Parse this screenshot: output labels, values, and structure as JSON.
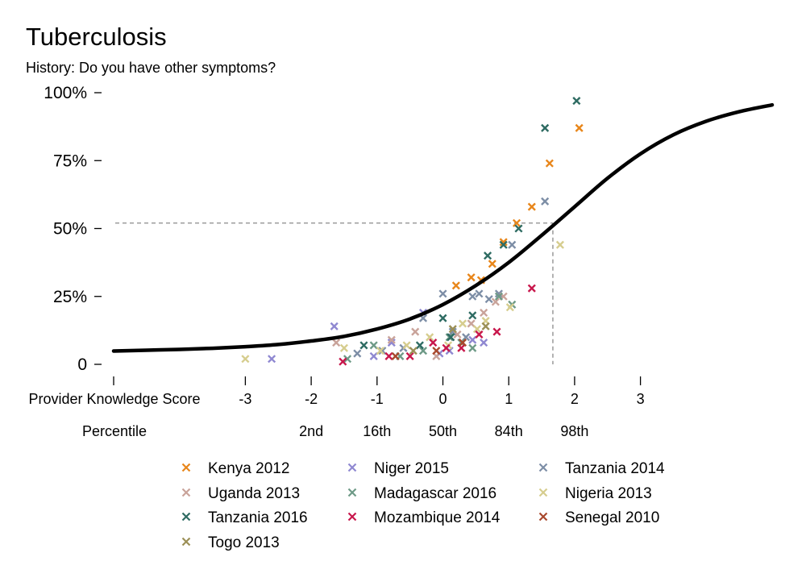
{
  "chart_data": {
    "type": "scatter",
    "title": "Tuberculosis",
    "subtitle": "History: Do you have other symptoms?",
    "y_ticks": [
      "0",
      "25%",
      "50%",
      "75%",
      "100%"
    ],
    "y_range": [
      0,
      100
    ],
    "x_range": [
      -5,
      5
    ],
    "x_row_label": "Provider Knowledge Score",
    "x_ticks": [
      "-3",
      "-2",
      "-1",
      "0",
      "1",
      "2",
      "3"
    ],
    "x_tick_values": [
      -3,
      -2,
      -1,
      0,
      1,
      2,
      3
    ],
    "percentile_row_label": "Percentile",
    "percentile_ticks": [
      "2nd",
      "16th",
      "50th",
      "84th",
      "98th"
    ],
    "percentile_values": [
      -2,
      -1,
      0,
      1,
      2
    ],
    "reference": {
      "x": 1.67,
      "y": 52
    },
    "grid": false,
    "legend_position": "bottom",
    "fit_curve": [
      [
        -5,
        4.9
      ],
      [
        -4.5,
        5.2
      ],
      [
        -4,
        5.5
      ],
      [
        -3.5,
        5.9
      ],
      [
        -3,
        6.5
      ],
      [
        -2.5,
        7.3
      ],
      [
        -2,
        8.6
      ],
      [
        -1.5,
        10.3
      ],
      [
        -1,
        13
      ],
      [
        -0.5,
        16.7
      ],
      [
        0,
        22
      ],
      [
        0.5,
        29
      ],
      [
        1,
        37.5
      ],
      [
        1.5,
        47.5
      ],
      [
        2,
        58
      ],
      [
        2.5,
        68.5
      ],
      [
        3,
        77.5
      ],
      [
        3.5,
        84.5
      ],
      [
        4,
        89.5
      ],
      [
        4.5,
        93
      ],
      [
        5,
        95.5
      ]
    ],
    "series": [
      {
        "name": "Kenya 2012",
        "color": "#e8861a",
        "points": [
          [
            0.2,
            29
          ],
          [
            0.43,
            32
          ],
          [
            0.58,
            31
          ],
          [
            0.75,
            37
          ],
          [
            0.92,
            45
          ],
          [
            1.12,
            52
          ],
          [
            1.35,
            58
          ],
          [
            1.62,
            74
          ],
          [
            2.07,
            87
          ]
        ]
      },
      {
        "name": "Niger 2015",
        "color": "#8f88d1",
        "points": [
          [
            -2.6,
            2
          ],
          [
            -1.65,
            14
          ],
          [
            -1.05,
            3
          ],
          [
            -0.78,
            8
          ],
          [
            -0.3,
            19
          ],
          [
            -0.05,
            4
          ],
          [
            0.1,
            5
          ],
          [
            0.45,
            9
          ],
          [
            0.62,
            8
          ]
        ]
      },
      {
        "name": "Tanzania 2014",
        "color": "#7d8ea6",
        "points": [
          [
            -1.3,
            4
          ],
          [
            -0.92,
            5
          ],
          [
            -0.6,
            6
          ],
          [
            -0.3,
            17
          ],
          [
            0,
            26
          ],
          [
            0.15,
            12
          ],
          [
            0.35,
            10
          ],
          [
            0.45,
            25
          ],
          [
            0.55,
            26
          ],
          [
            0.7,
            24
          ],
          [
            0.85,
            26
          ],
          [
            1.05,
            44
          ],
          [
            1.55,
            60
          ]
        ]
      },
      {
        "name": "Uganda 2013",
        "color": "#c9a39a",
        "points": [
          [
            -1.62,
            8
          ],
          [
            -0.78,
            9
          ],
          [
            -0.42,
            12
          ],
          [
            -0.1,
            3
          ],
          [
            0.22,
            11
          ],
          [
            0.43,
            15
          ],
          [
            0.62,
            19
          ],
          [
            0.8,
            23
          ],
          [
            0.92,
            25
          ]
        ]
      },
      {
        "name": "Madagascar 2016",
        "color": "#6e9a87",
        "points": [
          [
            -1.45,
            2
          ],
          [
            -1.05,
            7
          ],
          [
            -0.65,
            3
          ],
          [
            -0.3,
            5
          ],
          [
            0.1,
            10
          ],
          [
            0.28,
            8
          ],
          [
            0.45,
            6
          ],
          [
            0.85,
            25
          ],
          [
            1.05,
            22
          ]
        ]
      },
      {
        "name": "Nigeria 2013",
        "color": "#d6cd8e",
        "points": [
          [
            -3,
            2
          ],
          [
            -1.5,
            6
          ],
          [
            -0.95,
            5
          ],
          [
            -0.55,
            7
          ],
          [
            -0.2,
            10
          ],
          [
            0.08,
            7
          ],
          [
            0.3,
            15
          ],
          [
            0.52,
            13
          ],
          [
            0.65,
            16
          ],
          [
            1.02,
            21
          ],
          [
            1.78,
            44
          ]
        ]
      },
      {
        "name": "Tanzania 2016",
        "color": "#2e6b62",
        "points": [
          [
            -1.2,
            7
          ],
          [
            -0.35,
            7
          ],
          [
            0,
            17
          ],
          [
            0.12,
            10
          ],
          [
            0.45,
            18
          ],
          [
            0.68,
            40
          ],
          [
            0.92,
            44
          ],
          [
            1.15,
            50
          ],
          [
            1.55,
            87
          ],
          [
            2.03,
            97
          ]
        ]
      },
      {
        "name": "Mozambique 2014",
        "color": "#c8174c",
        "points": [
          [
            -1.52,
            1
          ],
          [
            -0.82,
            3
          ],
          [
            -0.5,
            3
          ],
          [
            -0.15,
            8
          ],
          [
            0.05,
            6
          ],
          [
            0.28,
            6
          ],
          [
            0.55,
            11
          ],
          [
            0.82,
            12
          ],
          [
            1.35,
            28
          ]
        ]
      },
      {
        "name": "Senegal 2010",
        "color": "#a8482c",
        "points": [
          [
            -0.72,
            3
          ],
          [
            -0.1,
            5
          ],
          [
            0.3,
            8
          ]
        ]
      },
      {
        "name": "Togo 2013",
        "color": "#9b8f56",
        "points": [
          [
            -0.45,
            5
          ],
          [
            0.15,
            13
          ],
          [
            0.65,
            14
          ]
        ]
      }
    ]
  }
}
